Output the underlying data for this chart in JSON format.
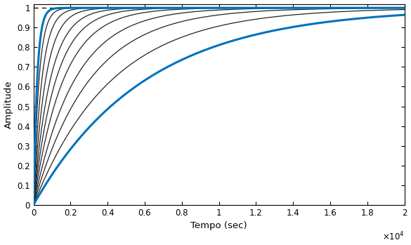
{
  "title": "",
  "xlabel": "Tempo (sec)",
  "ylabel": "Amplitude",
  "xlim": [
    0,
    20000
  ],
  "ylim": [
    0,
    1.02
  ],
  "xtick_positions": [
    0,
    2000,
    4000,
    6000,
    8000,
    10000,
    12000,
    14000,
    16000,
    18000,
    20000
  ],
  "xtick_labels": [
    "0",
    "0.2",
    "0.4",
    "0.6",
    "0.8",
    "1",
    "1.2",
    "1.4",
    "1.6",
    "1.8",
    "2"
  ],
  "ytick_values": [
    0,
    0.1,
    0.2,
    0.3,
    0.4,
    0.5,
    0.6,
    0.7,
    0.8,
    0.9,
    1
  ],
  "dashed_line_y": 1.0,
  "blue_color": "#0072BD",
  "black_color": "#222222",
  "background_color": "#ffffff",
  "blue_linewidth": 2.2,
  "black_linewidth": 0.9,
  "black_tau_values": [
    300,
    450,
    650,
    900,
    1200,
    1600,
    2200,
    3000,
    4200
  ],
  "blue_tau_fast": 200,
  "blue_tau_slow": 6000
}
